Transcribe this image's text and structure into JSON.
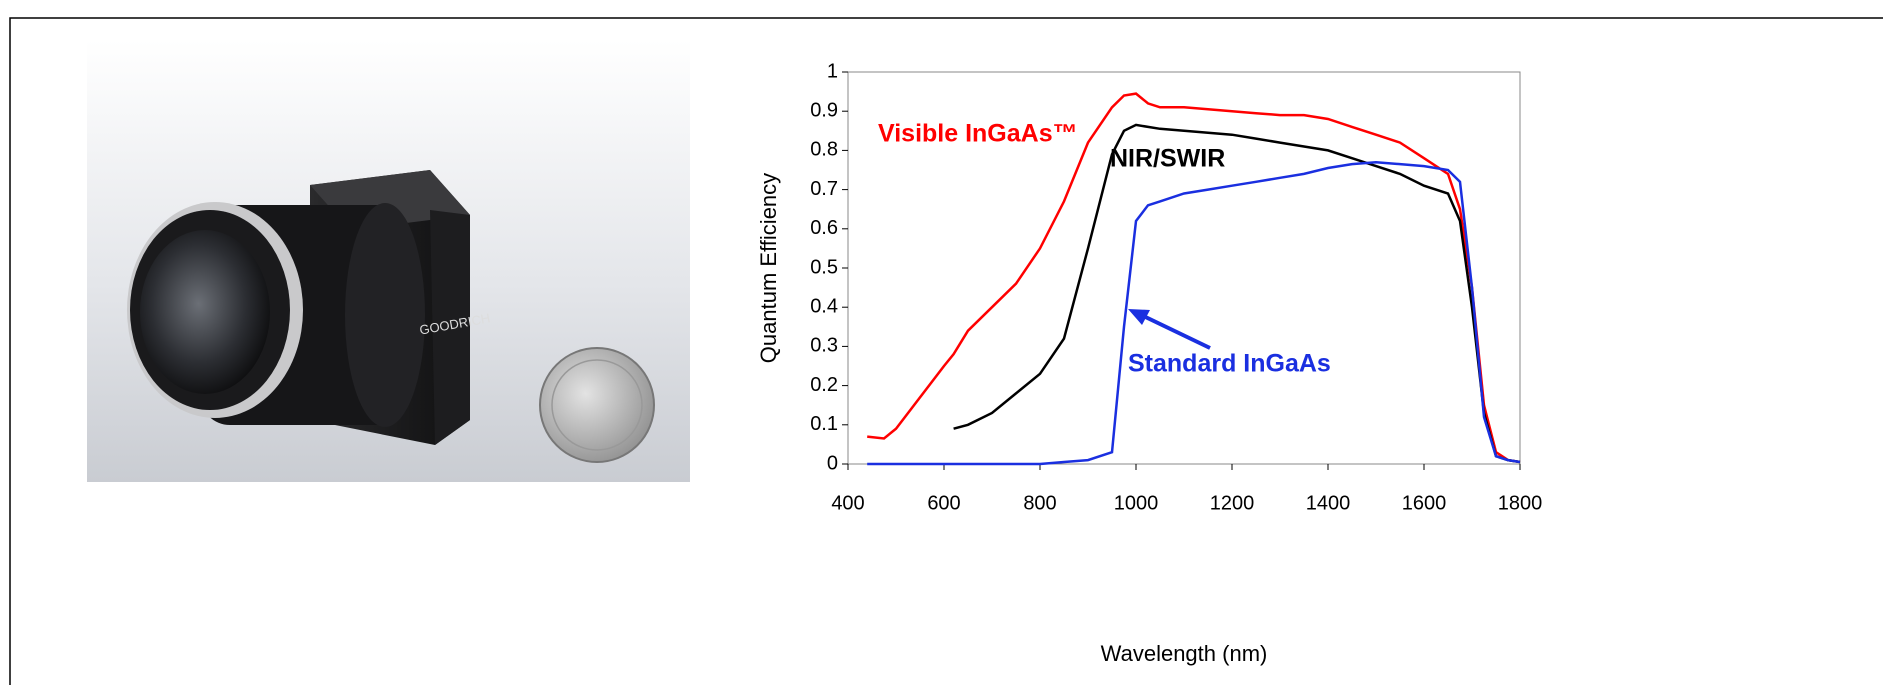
{
  "photo": {
    "brand": "GOODRICH"
  },
  "chart_data": {
    "type": "line",
    "x_label": "Wavelength (nm)",
    "y_label": "Quantum Efficiency",
    "x": [
      440,
      475,
      500,
      550,
      600,
      620,
      650,
      700,
      750,
      800,
      850,
      900,
      950,
      975,
      1000,
      1025,
      1050,
      1100,
      1150,
      1200,
      1250,
      1300,
      1350,
      1400,
      1450,
      1500,
      1550,
      1600,
      1650,
      1675,
      1700,
      1725,
      1750,
      1775,
      1800
    ],
    "series": [
      {
        "name": "Visible InGaAs™",
        "color": "#ff0000",
        "values": [
          0.07,
          0.065,
          0.09,
          0.17,
          0.25,
          0.28,
          0.34,
          0.4,
          0.46,
          0.55,
          0.67,
          0.82,
          0.91,
          0.94,
          0.945,
          0.92,
          0.91,
          0.91,
          0.905,
          0.9,
          0.895,
          0.89,
          0.89,
          0.88,
          0.86,
          0.84,
          0.82,
          0.78,
          0.74,
          0.65,
          0.45,
          0.15,
          0.03,
          0.01,
          0.005
        ]
      },
      {
        "name": "NIR/SWIR",
        "color": "#000000",
        "values": [
          null,
          null,
          null,
          null,
          null,
          0.09,
          0.1,
          0.13,
          0.18,
          0.23,
          0.32,
          0.55,
          0.79,
          0.85,
          0.865,
          0.86,
          0.855,
          0.85,
          0.845,
          0.84,
          0.83,
          0.82,
          0.81,
          0.8,
          0.78,
          0.76,
          0.74,
          0.71,
          0.69,
          0.62,
          0.4,
          0.13,
          0.02,
          0.01,
          0.005
        ]
      },
      {
        "name": "Standard InGaAs",
        "color": "#1a2fe0",
        "values": [
          0,
          0,
          0,
          0,
          0,
          0,
          0,
          0,
          0,
          0,
          0.005,
          0.01,
          0.03,
          0.35,
          0.62,
          0.66,
          0.67,
          0.69,
          0.7,
          0.71,
          0.72,
          0.73,
          0.74,
          0.755,
          0.765,
          0.77,
          0.765,
          0.76,
          0.75,
          0.72,
          0.45,
          0.12,
          0.02,
          0.01,
          0.005
        ]
      }
    ],
    "xlim": [
      400,
      1800
    ],
    "xticks": [
      400,
      600,
      800,
      1000,
      1200,
      1400,
      1600,
      1800
    ],
    "ylim": [
      0,
      1
    ],
    "yticks": [
      0,
      0.1,
      0.2,
      0.3,
      0.4,
      0.5,
      0.6,
      0.7,
      0.8,
      0.9,
      1
    ]
  }
}
